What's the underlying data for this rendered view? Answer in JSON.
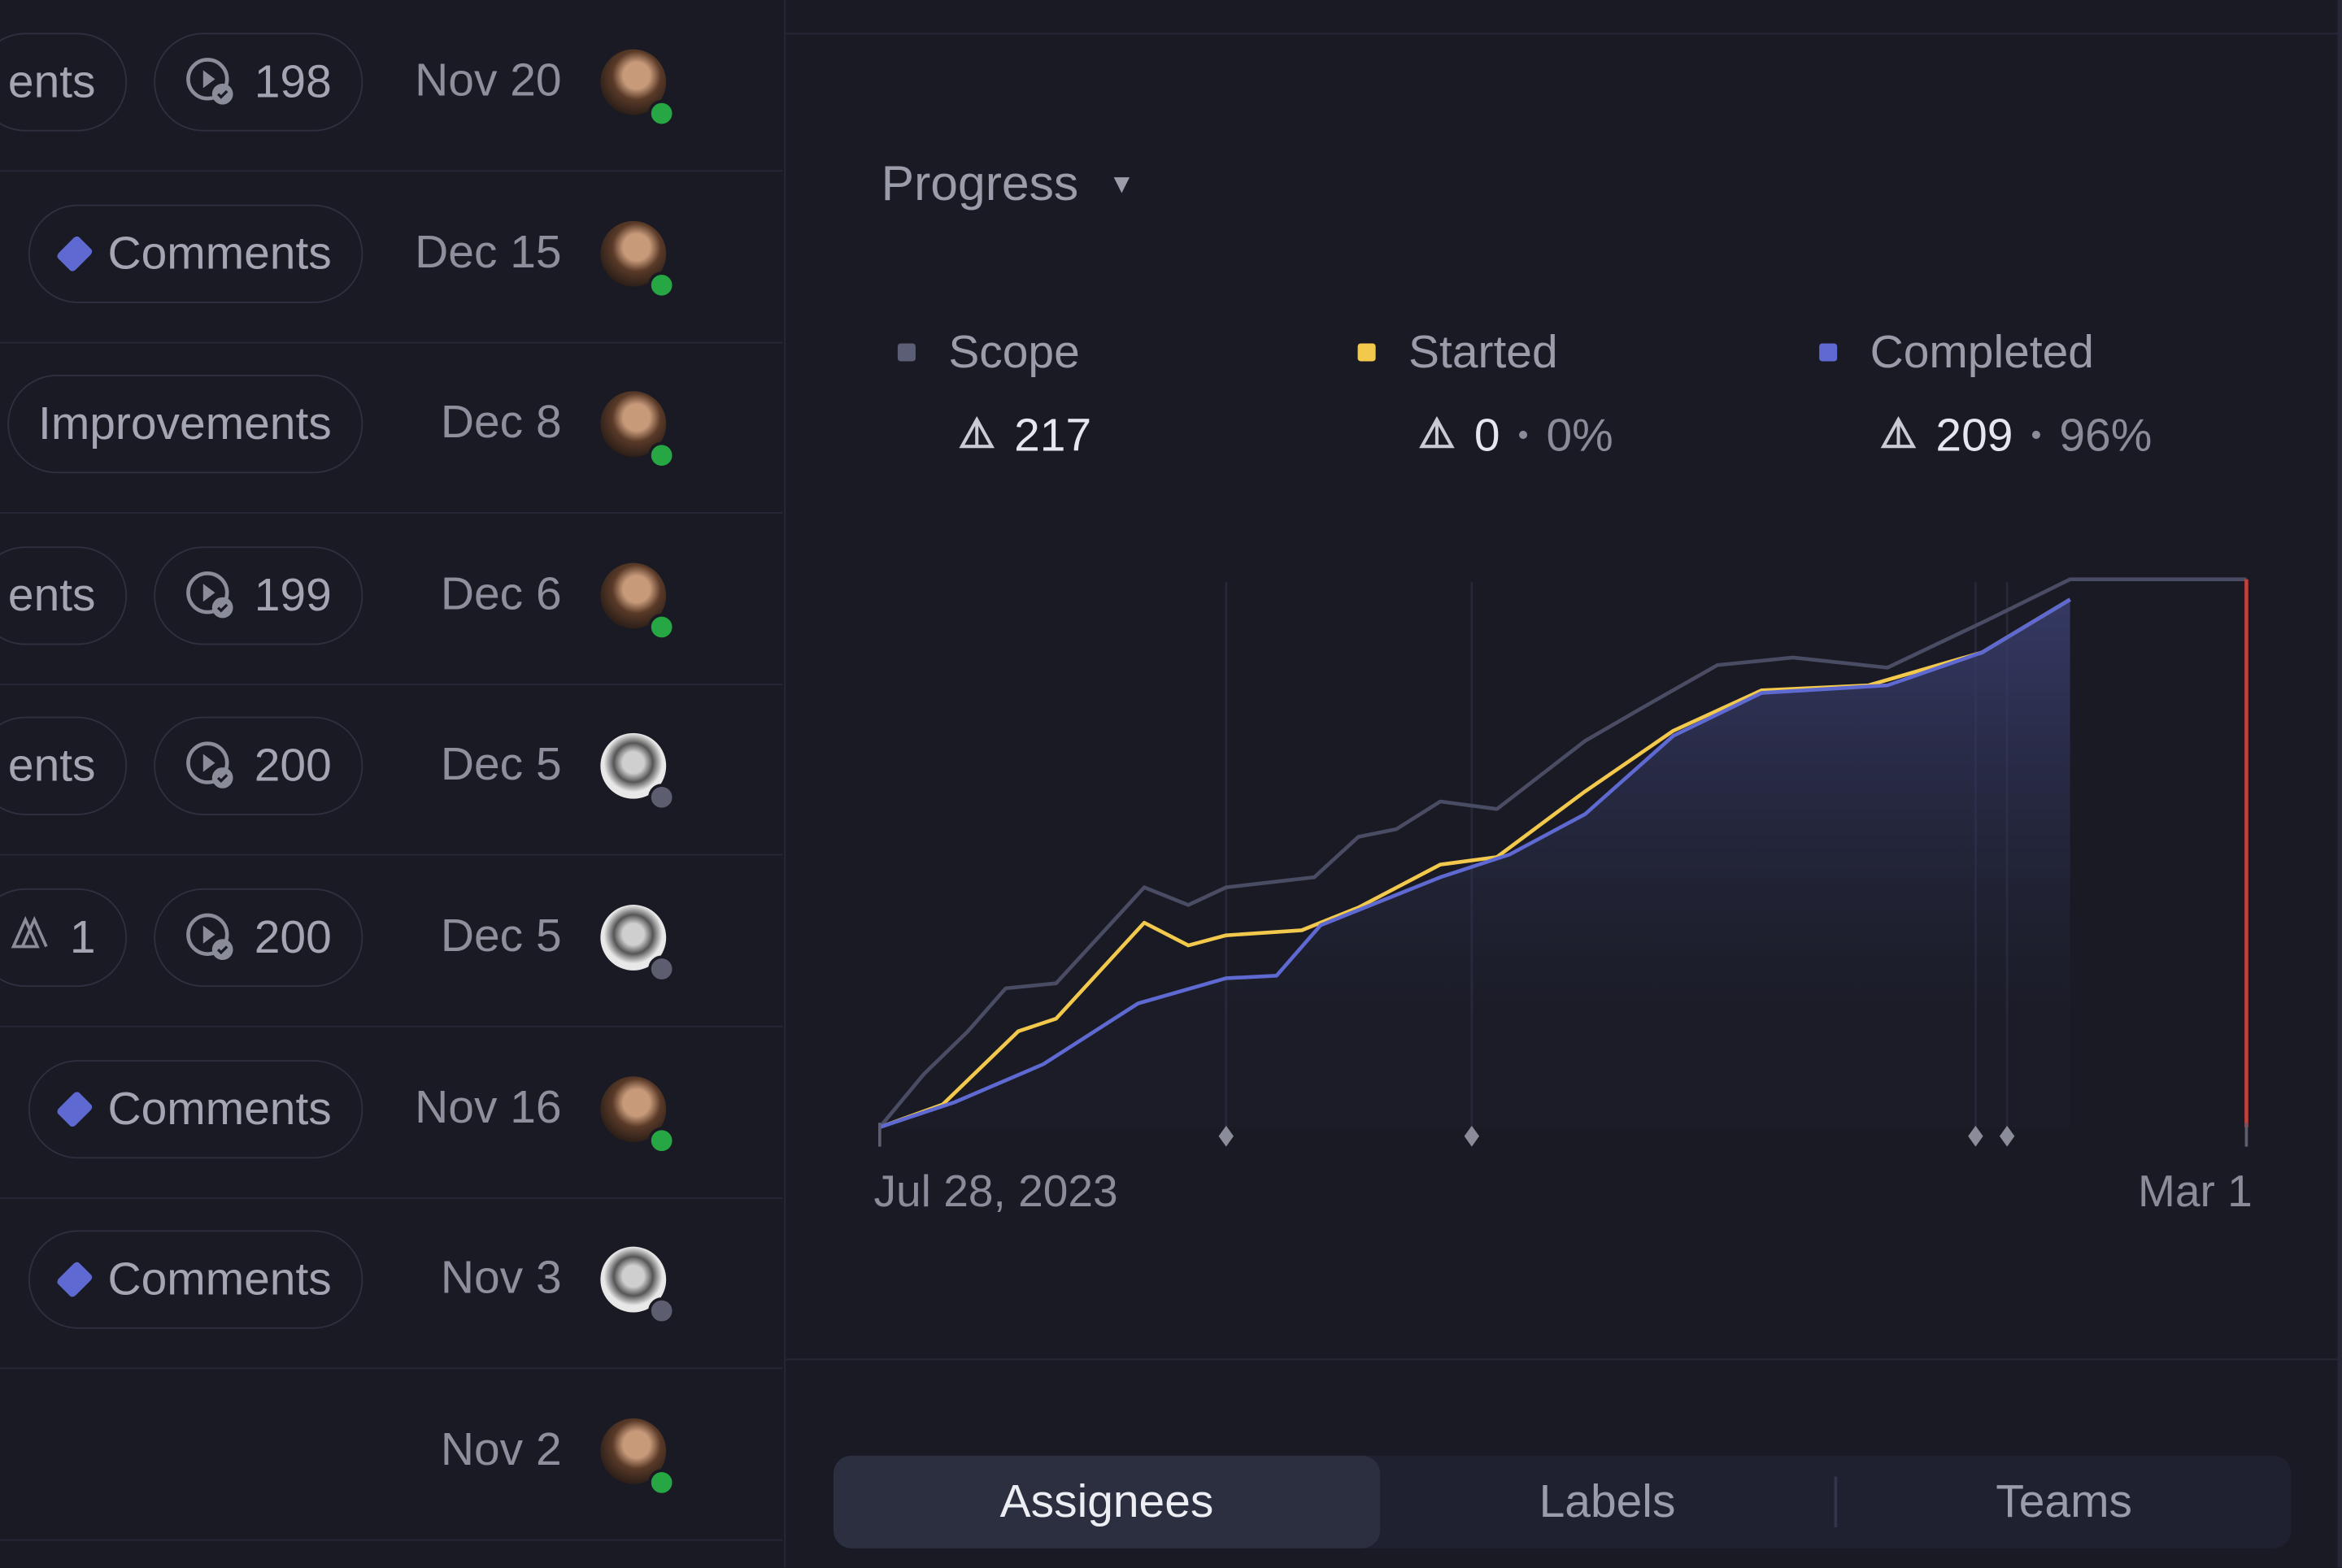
{
  "rows": [
    {
      "chips": [
        {
          "type": "text",
          "label": "ents"
        },
        {
          "type": "cycle",
          "label": "198"
        }
      ],
      "date": "Nov 20",
      "avatar": "a",
      "status": "online"
    },
    {
      "chips": [
        {
          "type": "project",
          "label": "Comments"
        }
      ],
      "date": "Dec 15",
      "avatar": "a",
      "status": "online"
    },
    {
      "chips": [
        {
          "type": "text",
          "label": "Improvements"
        }
      ],
      "date": "Dec 8",
      "avatar": "a",
      "status": "online"
    },
    {
      "chips": [
        {
          "type": "text",
          "label": "ents"
        },
        {
          "type": "cycle",
          "label": "199"
        }
      ],
      "date": "Dec 6",
      "avatar": "a",
      "status": "online"
    },
    {
      "chips": [
        {
          "type": "text",
          "label": "ents"
        },
        {
          "type": "cycle",
          "label": "200"
        }
      ],
      "date": "Dec 5",
      "avatar": "b",
      "status": "offline"
    },
    {
      "chips": [
        {
          "type": "estimate",
          "label": "1"
        },
        {
          "type": "cycle",
          "label": "200"
        }
      ],
      "date": "Dec 5",
      "avatar": "b",
      "status": "offline"
    },
    {
      "chips": [
        {
          "type": "project",
          "label": "Comments"
        }
      ],
      "date": "Nov 16",
      "avatar": "a",
      "status": "online"
    },
    {
      "chips": [
        {
          "type": "project",
          "label": "Comments"
        }
      ],
      "date": "Nov 3",
      "avatar": "b",
      "status": "offline"
    },
    {
      "chips": [],
      "date": "Nov 2",
      "avatar": "a",
      "status": "online"
    }
  ],
  "panel": {
    "dropdown_label": "Progress",
    "legend": [
      {
        "name": "Scope",
        "value": "217",
        "percent": "",
        "color": "#5c5e75"
      },
      {
        "name": "Started",
        "value": "0",
        "percent": "0%",
        "color": "#f2c94c"
      },
      {
        "name": "Completed",
        "value": "209",
        "percent": "96%",
        "color": "#5e6ad2"
      }
    ],
    "tabs": [
      "Assignees",
      "Labels",
      "Teams"
    ],
    "active_tab": "Assignees"
  },
  "colors": {
    "online": "#27a644",
    "offline": "#5c5e70",
    "accent": "#5e6ad2",
    "today": "#c4403a"
  },
  "chart_data": {
    "type": "line",
    "x_start": "2023-07-28",
    "x_end": "2024-03-01",
    "x_tick_labels": [
      "Jul 28, 2023",
      "Mar 1"
    ],
    "ylim": [
      0,
      217
    ],
    "grid": false,
    "milestones": [
      "2023-09-21",
      "2023-10-30",
      "2024-01-18",
      "2024-01-23"
    ],
    "target_date": "2024-03-01",
    "series": [
      {
        "name": "Scope",
        "color": "#4a4c63",
        "points": [
          [
            "2023-07-28",
            0
          ],
          [
            "2023-08-04",
            21
          ],
          [
            "2023-08-11",
            38
          ],
          [
            "2023-08-17",
            55
          ],
          [
            "2023-08-25",
            57
          ],
          [
            "2023-09-08",
            95
          ],
          [
            "2023-09-15",
            88
          ],
          [
            "2023-09-21",
            95
          ],
          [
            "2023-10-05",
            99
          ],
          [
            "2023-10-12",
            115
          ],
          [
            "2023-10-18",
            118
          ],
          [
            "2023-10-25",
            129
          ],
          [
            "2023-11-03",
            126
          ],
          [
            "2023-11-17",
            153
          ],
          [
            "2023-11-26",
            166
          ],
          [
            "2023-12-08",
            183
          ],
          [
            "2023-12-20",
            186
          ],
          [
            "2024-01-04",
            182
          ],
          [
            "2024-01-20",
            201
          ],
          [
            "2024-02-02",
            217
          ],
          [
            "2024-03-01",
            217
          ]
        ]
      },
      {
        "name": "Started",
        "color": "#f2c94c",
        "points": [
          [
            "2023-07-28",
            0
          ],
          [
            "2023-08-07",
            9
          ],
          [
            "2023-08-19",
            38
          ],
          [
            "2023-08-25",
            43
          ],
          [
            "2023-09-08",
            81
          ],
          [
            "2023-09-15",
            72
          ],
          [
            "2023-09-21",
            76
          ],
          [
            "2023-10-03",
            78
          ],
          [
            "2023-10-12",
            87
          ],
          [
            "2023-10-25",
            104
          ],
          [
            "2023-11-03",
            107
          ],
          [
            "2023-11-17",
            133
          ],
          [
            "2023-12-01",
            157
          ],
          [
            "2023-12-15",
            173
          ],
          [
            "2024-01-01",
            175
          ],
          [
            "2024-01-19",
            188
          ],
          [
            "2024-02-02",
            209
          ]
        ]
      },
      {
        "name": "Completed",
        "color": "#5e6ad2",
        "points": [
          [
            "2023-07-28",
            0
          ],
          [
            "2023-08-09",
            10
          ],
          [
            "2023-08-23",
            25
          ],
          [
            "2023-09-07",
            49
          ],
          [
            "2023-09-21",
            59
          ],
          [
            "2023-09-29",
            60
          ],
          [
            "2023-10-06",
            80
          ],
          [
            "2023-10-25",
            99
          ],
          [
            "2023-11-05",
            108
          ],
          [
            "2023-11-17",
            124
          ],
          [
            "2023-12-01",
            155
          ],
          [
            "2023-12-15",
            172
          ],
          [
            "2024-01-04",
            175
          ],
          [
            "2024-01-19",
            188
          ],
          [
            "2024-02-02",
            209
          ]
        ]
      }
    ]
  }
}
